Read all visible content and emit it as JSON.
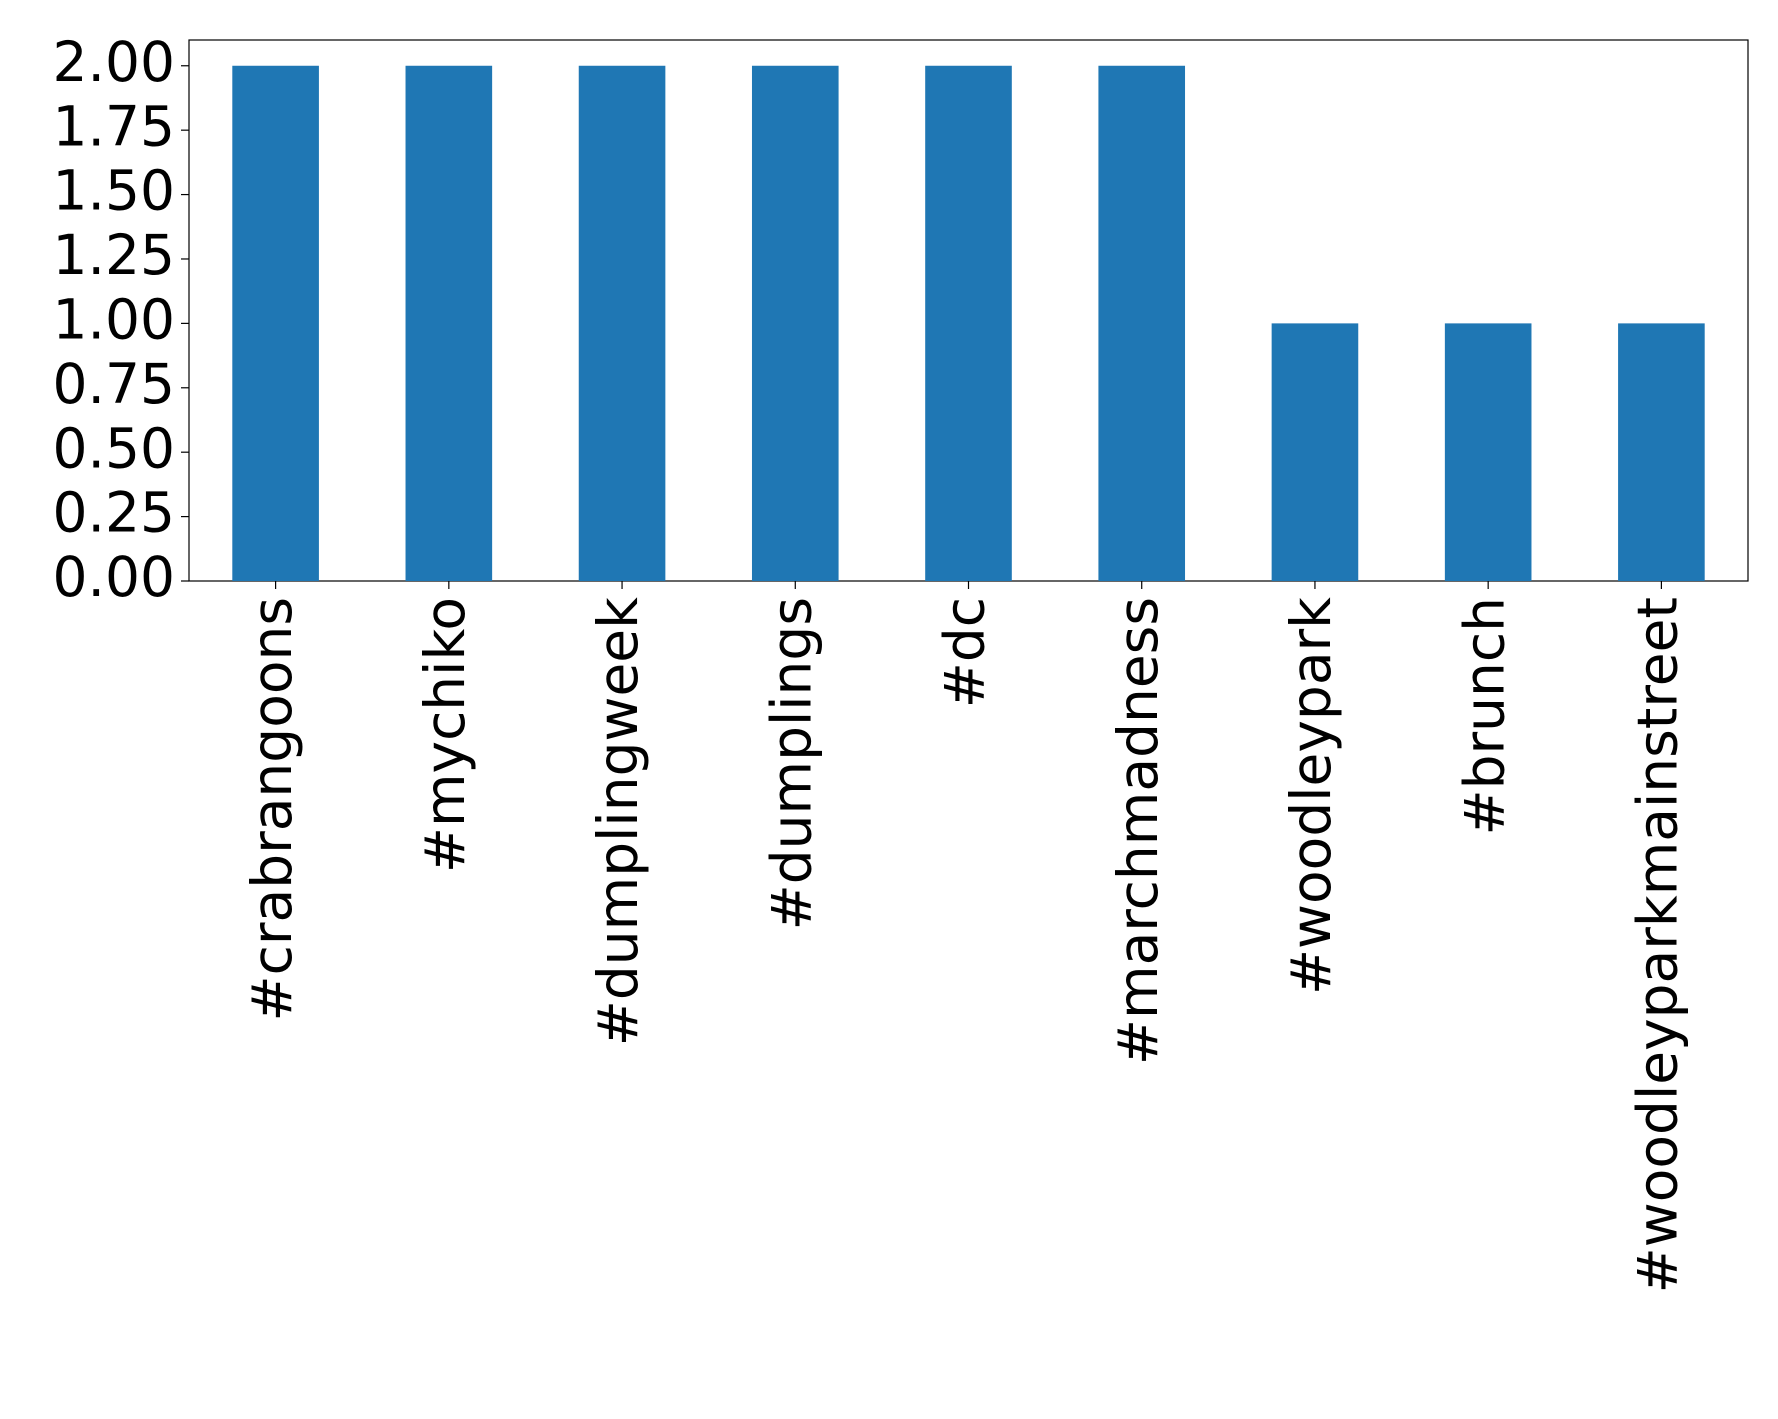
{
  "chart_data": {
    "type": "bar",
    "categories": [
      "#crabrangoons",
      "#mychiko",
      "#dumplingweek",
      "#dumplings",
      "#dc",
      "#marchmadness",
      "#woodleypark",
      "#brunch",
      "#woodleyparkmainstreet"
    ],
    "values": [
      2,
      2,
      2,
      2,
      2,
      2,
      1,
      1,
      1
    ],
    "color": "#1f77b4",
    "ylim": [
      0,
      2.1
    ],
    "yticks": [
      {
        "value": 0,
        "label": "0.00"
      },
      {
        "value": 0.25,
        "label": "0.25"
      },
      {
        "value": 0.5,
        "label": "0.50"
      },
      {
        "value": 0.75,
        "label": "0.75"
      },
      {
        "value": 1,
        "label": "1.00"
      },
      {
        "value": 1.25,
        "label": "1.25"
      },
      {
        "value": 1.5,
        "label": "1.50"
      },
      {
        "value": 1.75,
        "label": "1.75"
      },
      {
        "value": 2,
        "label": "2.00"
      }
    ],
    "grid": false
  }
}
